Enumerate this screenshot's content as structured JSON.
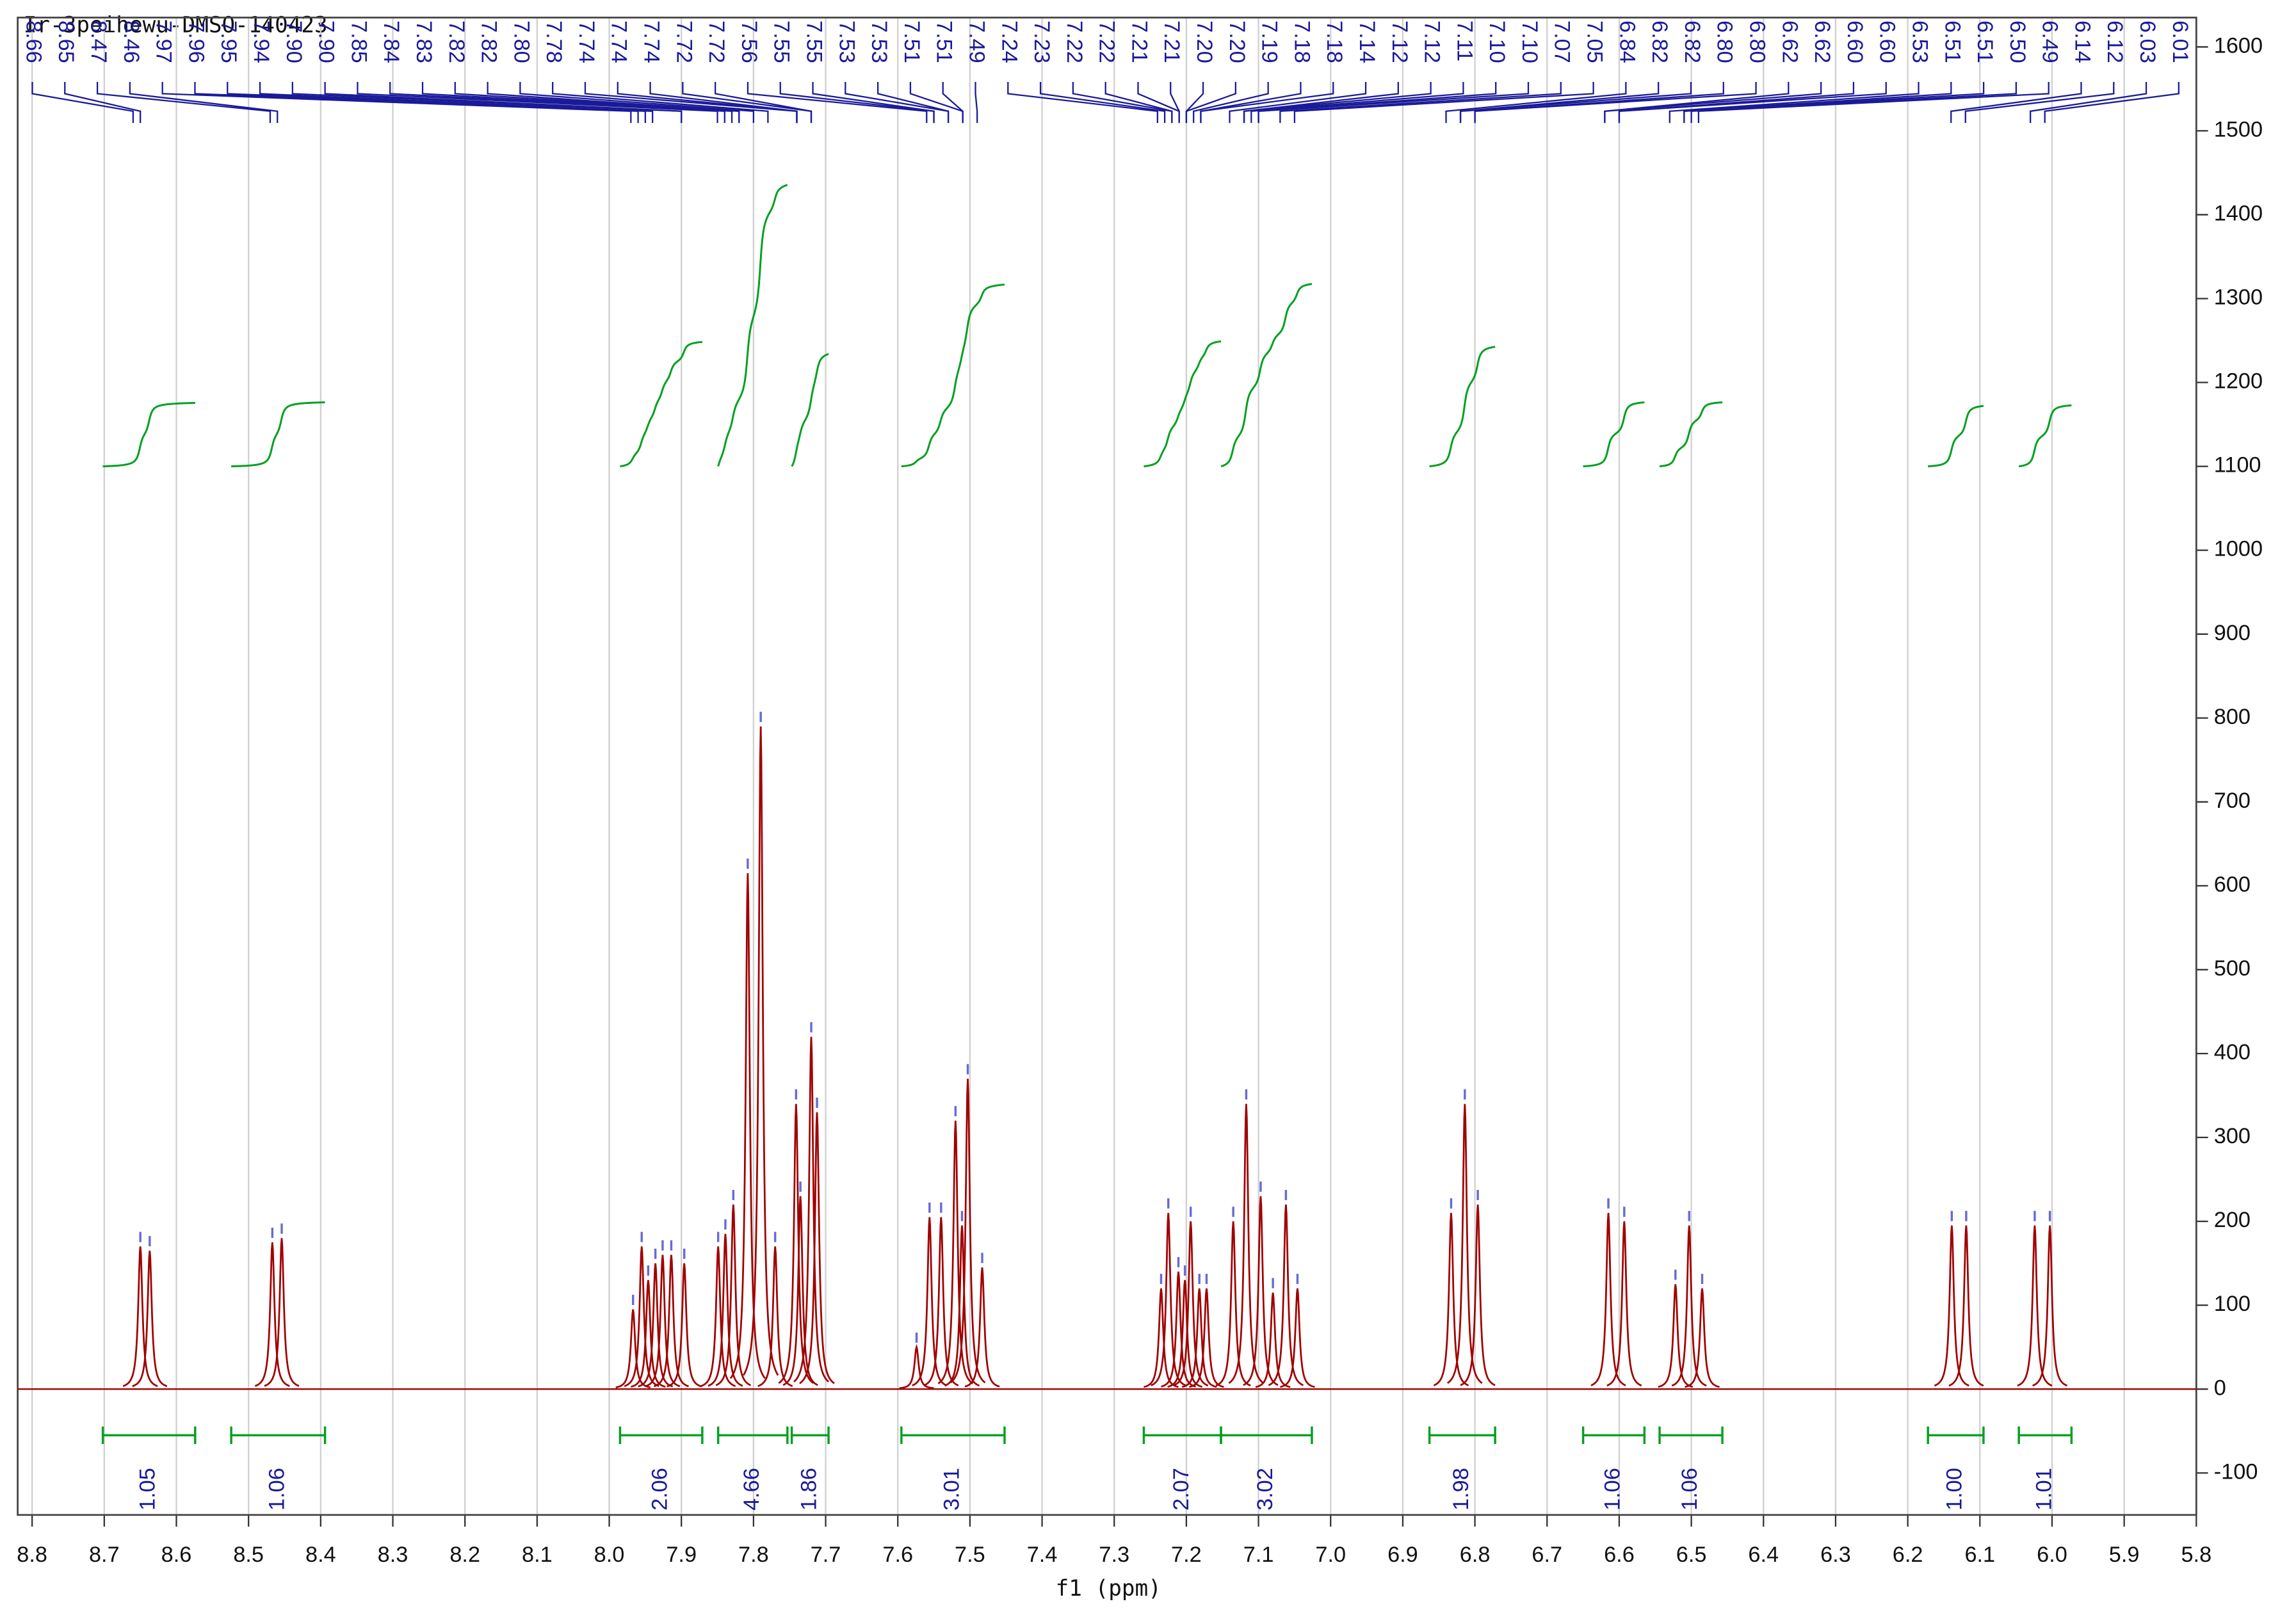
{
  "chart_data": {
    "type": "nmr",
    "title": "Ir-3peihewu-DMSO-140423",
    "x_label": "f1 (ppm)",
    "xlim": [
      8.82,
      5.8
    ],
    "ylim": [
      -150,
      1635
    ],
    "grid": true,
    "color": "#a00000",
    "integral_color": "#00a020",
    "label_color": "#1a1a99",
    "xticks": [
      8.8,
      8.7,
      8.6,
      8.5,
      8.4,
      8.3,
      8.2,
      8.1,
      {
        "value": 8,
        "label": "8.0"
      },
      7.9,
      7.8,
      7.7,
      7.6,
      7.5,
      7.4,
      7.3,
      7.2,
      7.1,
      {
        "value": 7,
        "label": "7.0"
      },
      6.9,
      6.8,
      6.7,
      6.6,
      6.5,
      6.4,
      6.3,
      6.2,
      6.1,
      {
        "value": 6,
        "label": "6.0"
      },
      5.9,
      5.8
    ],
    "yticks": [
      -100,
      0,
      100,
      200,
      300,
      400,
      500,
      600,
      700,
      800,
      900,
      1000,
      1100,
      1200,
      1300,
      1400,
      1500,
      1600
    ],
    "peaks": {
      "x": [
        8.65,
        8.637,
        8.467,
        8.454,
        7.967,
        7.955,
        7.946,
        7.936,
        7.926,
        7.914,
        7.896,
        7.849,
        7.839,
        7.828,
        7.808,
        7.79,
        7.77,
        7.741,
        7.735,
        7.72,
        7.712,
        7.574,
        7.556,
        7.54,
        7.52,
        7.511,
        7.503,
        7.483,
        7.235,
        7.225,
        7.211,
        7.202,
        7.194,
        7.182,
        7.172,
        7.135,
        7.117,
        7.097,
        7.08,
        7.062,
        7.046,
        6.833,
        6.814,
        6.796,
        6.615,
        6.593,
        6.522,
        6.503,
        6.485,
        6.139,
        6.119,
        6.024,
        6.003
      ],
      "values": [
        170,
        165,
        175,
        180,
        95,
        170,
        130,
        150,
        160,
        160,
        150,
        170,
        185,
        220,
        615,
        790,
        170,
        340,
        230,
        420,
        330,
        50,
        205,
        205,
        320,
        195,
        370,
        145,
        120,
        210,
        140,
        130,
        200,
        120,
        120,
        200,
        340,
        230,
        115,
        220,
        120,
        210,
        340,
        220,
        210,
        200,
        125,
        195,
        120,
        195,
        195,
        195,
        195
      ]
    },
    "peak_labels": [
      8.66,
      8.65,
      8.47,
      8.46,
      7.97,
      7.96,
      7.95,
      7.94,
      {
        "value": 7.9,
        "label": "7.90"
      },
      {
        "value": 7.9,
        "label": "7.90"
      },
      7.85,
      7.84,
      7.83,
      7.82,
      7.82,
      {
        "value": 7.8,
        "label": "7.80"
      },
      7.78,
      7.74,
      7.74,
      7.74,
      7.72,
      7.72,
      7.56,
      7.55,
      7.55,
      7.53,
      7.53,
      7.51,
      7.51,
      7.49,
      7.24,
      7.23,
      7.22,
      7.22,
      7.21,
      7.21,
      {
        "value": 7.2,
        "label": "7.20"
      },
      {
        "value": 7.2,
        "label": "7.20"
      },
      7.19,
      7.18,
      7.18,
      7.14,
      7.12,
      7.12,
      7.11,
      {
        "value": 7.1,
        "label": "7.10"
      },
      {
        "value": 7.1,
        "label": "7.10"
      },
      7.07,
      7.05,
      6.84,
      6.82,
      6.82,
      {
        "value": 6.8,
        "label": "6.80"
      },
      {
        "value": 6.8,
        "label": "6.80"
      },
      6.62,
      6.62,
      {
        "value": 6.6,
        "label": "6.60"
      },
      {
        "value": 6.6,
        "label": "6.60"
      },
      6.53,
      6.51,
      6.51,
      {
        "value": 6.5,
        "label": "6.50"
      },
      6.49,
      6.14,
      6.12,
      6.03,
      6.01
    ],
    "integrals": {
      "ranges": [
        [
          8.702,
          8.574
        ],
        [
          8.524,
          8.394
        ],
        [
          7.985,
          7.871
        ],
        [
          7.849,
          7.753
        ],
        [
          7.747,
          7.696
        ],
        [
          7.595,
          7.452
        ],
        [
          7.259,
          7.152
        ],
        [
          7.152,
          7.026
        ],
        [
          6.863,
          6.772
        ],
        [
          6.65,
          6.565
        ],
        [
          6.544,
          6.457
        ],
        [
          6.172,
          6.095
        ],
        [
          6.046,
          5.973
        ]
      ],
      "values": [
        1.05,
        1.06,
        2.06,
        4.66,
        1.86,
        3.01,
        2.07,
        3.02,
        1.98,
        1.06,
        1.06,
        1.0,
        1.01
      ],
      "value_labels": [
        "1.05",
        "1.06",
        "2.06",
        "4.66",
        "1.86",
        "3.01",
        "2.07",
        "3.02",
        "1.98",
        "1.06",
        "1.06",
        "1.00",
        "1.01"
      ]
    }
  }
}
